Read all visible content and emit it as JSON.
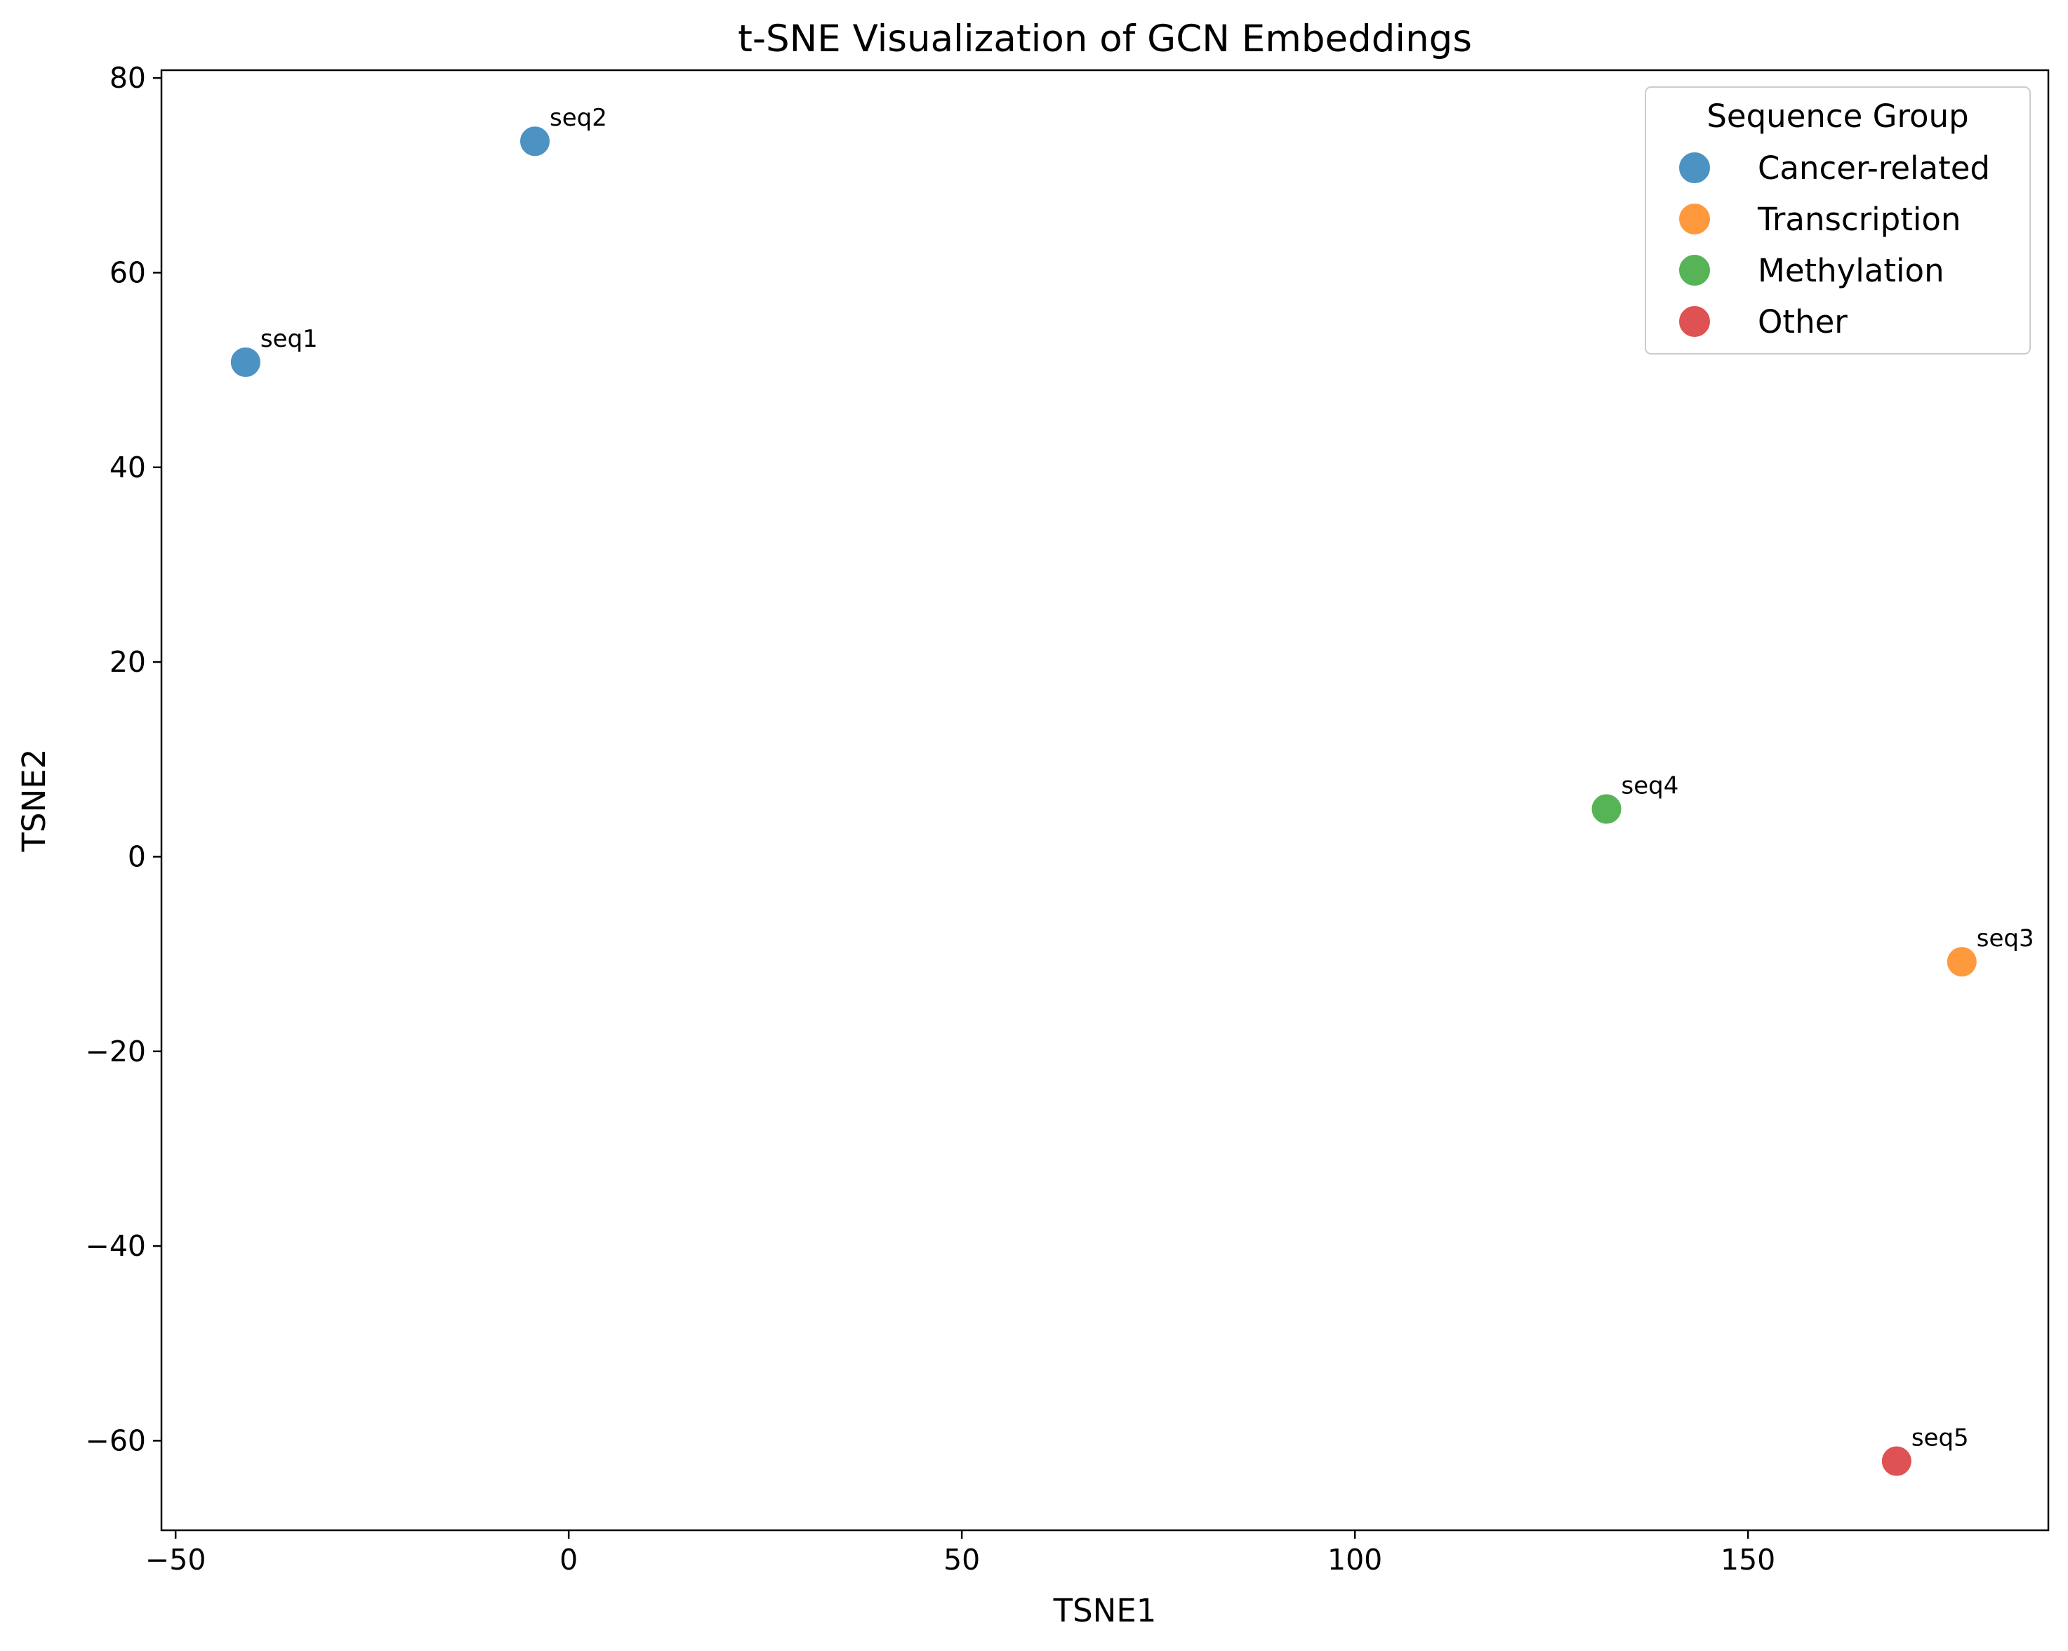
{
  "chart_data": {
    "type": "scatter",
    "title": "t-SNE Visualization of GCN Embeddings",
    "xlabel": "TSNE1",
    "ylabel": "TSNE2",
    "xlim": [
      -51.8,
      188.2
    ],
    "ylim": [
      -69.2,
      80.8
    ],
    "xticks": [
      -50,
      0,
      50,
      100,
      150
    ],
    "yticks": [
      -60,
      -40,
      -20,
      0,
      20,
      40,
      60,
      80
    ],
    "xtick_labels": [
      "−50",
      "0",
      "50",
      "100",
      "150"
    ],
    "ytick_labels": [
      "−60",
      "−40",
      "−20",
      "0",
      "20",
      "40",
      "60",
      "80"
    ],
    "grid": false,
    "legend": {
      "title": "Sequence Group",
      "placement": "top-right",
      "entries": [
        {
          "name": "Cancer-related",
          "color": "#1f77b4"
        },
        {
          "name": "Transcription",
          "color": "#ff7f0e"
        },
        {
          "name": "Methylation",
          "color": "#2ca02c"
        },
        {
          "name": "Other",
          "color": "#d62728"
        }
      ]
    },
    "points": [
      {
        "label": "seq1",
        "x": -41.1,
        "y": 50.8,
        "group": "Cancer-related"
      },
      {
        "label": "seq2",
        "x": -4.3,
        "y": 73.5,
        "group": "Cancer-related"
      },
      {
        "label": "seq3",
        "x": 177.2,
        "y": -10.8,
        "group": "Transcription"
      },
      {
        "label": "seq4",
        "x": 132.0,
        "y": 4.9,
        "group": "Methylation"
      },
      {
        "label": "seq5",
        "x": 168.9,
        "y": -62.1,
        "group": "Other"
      }
    ]
  }
}
